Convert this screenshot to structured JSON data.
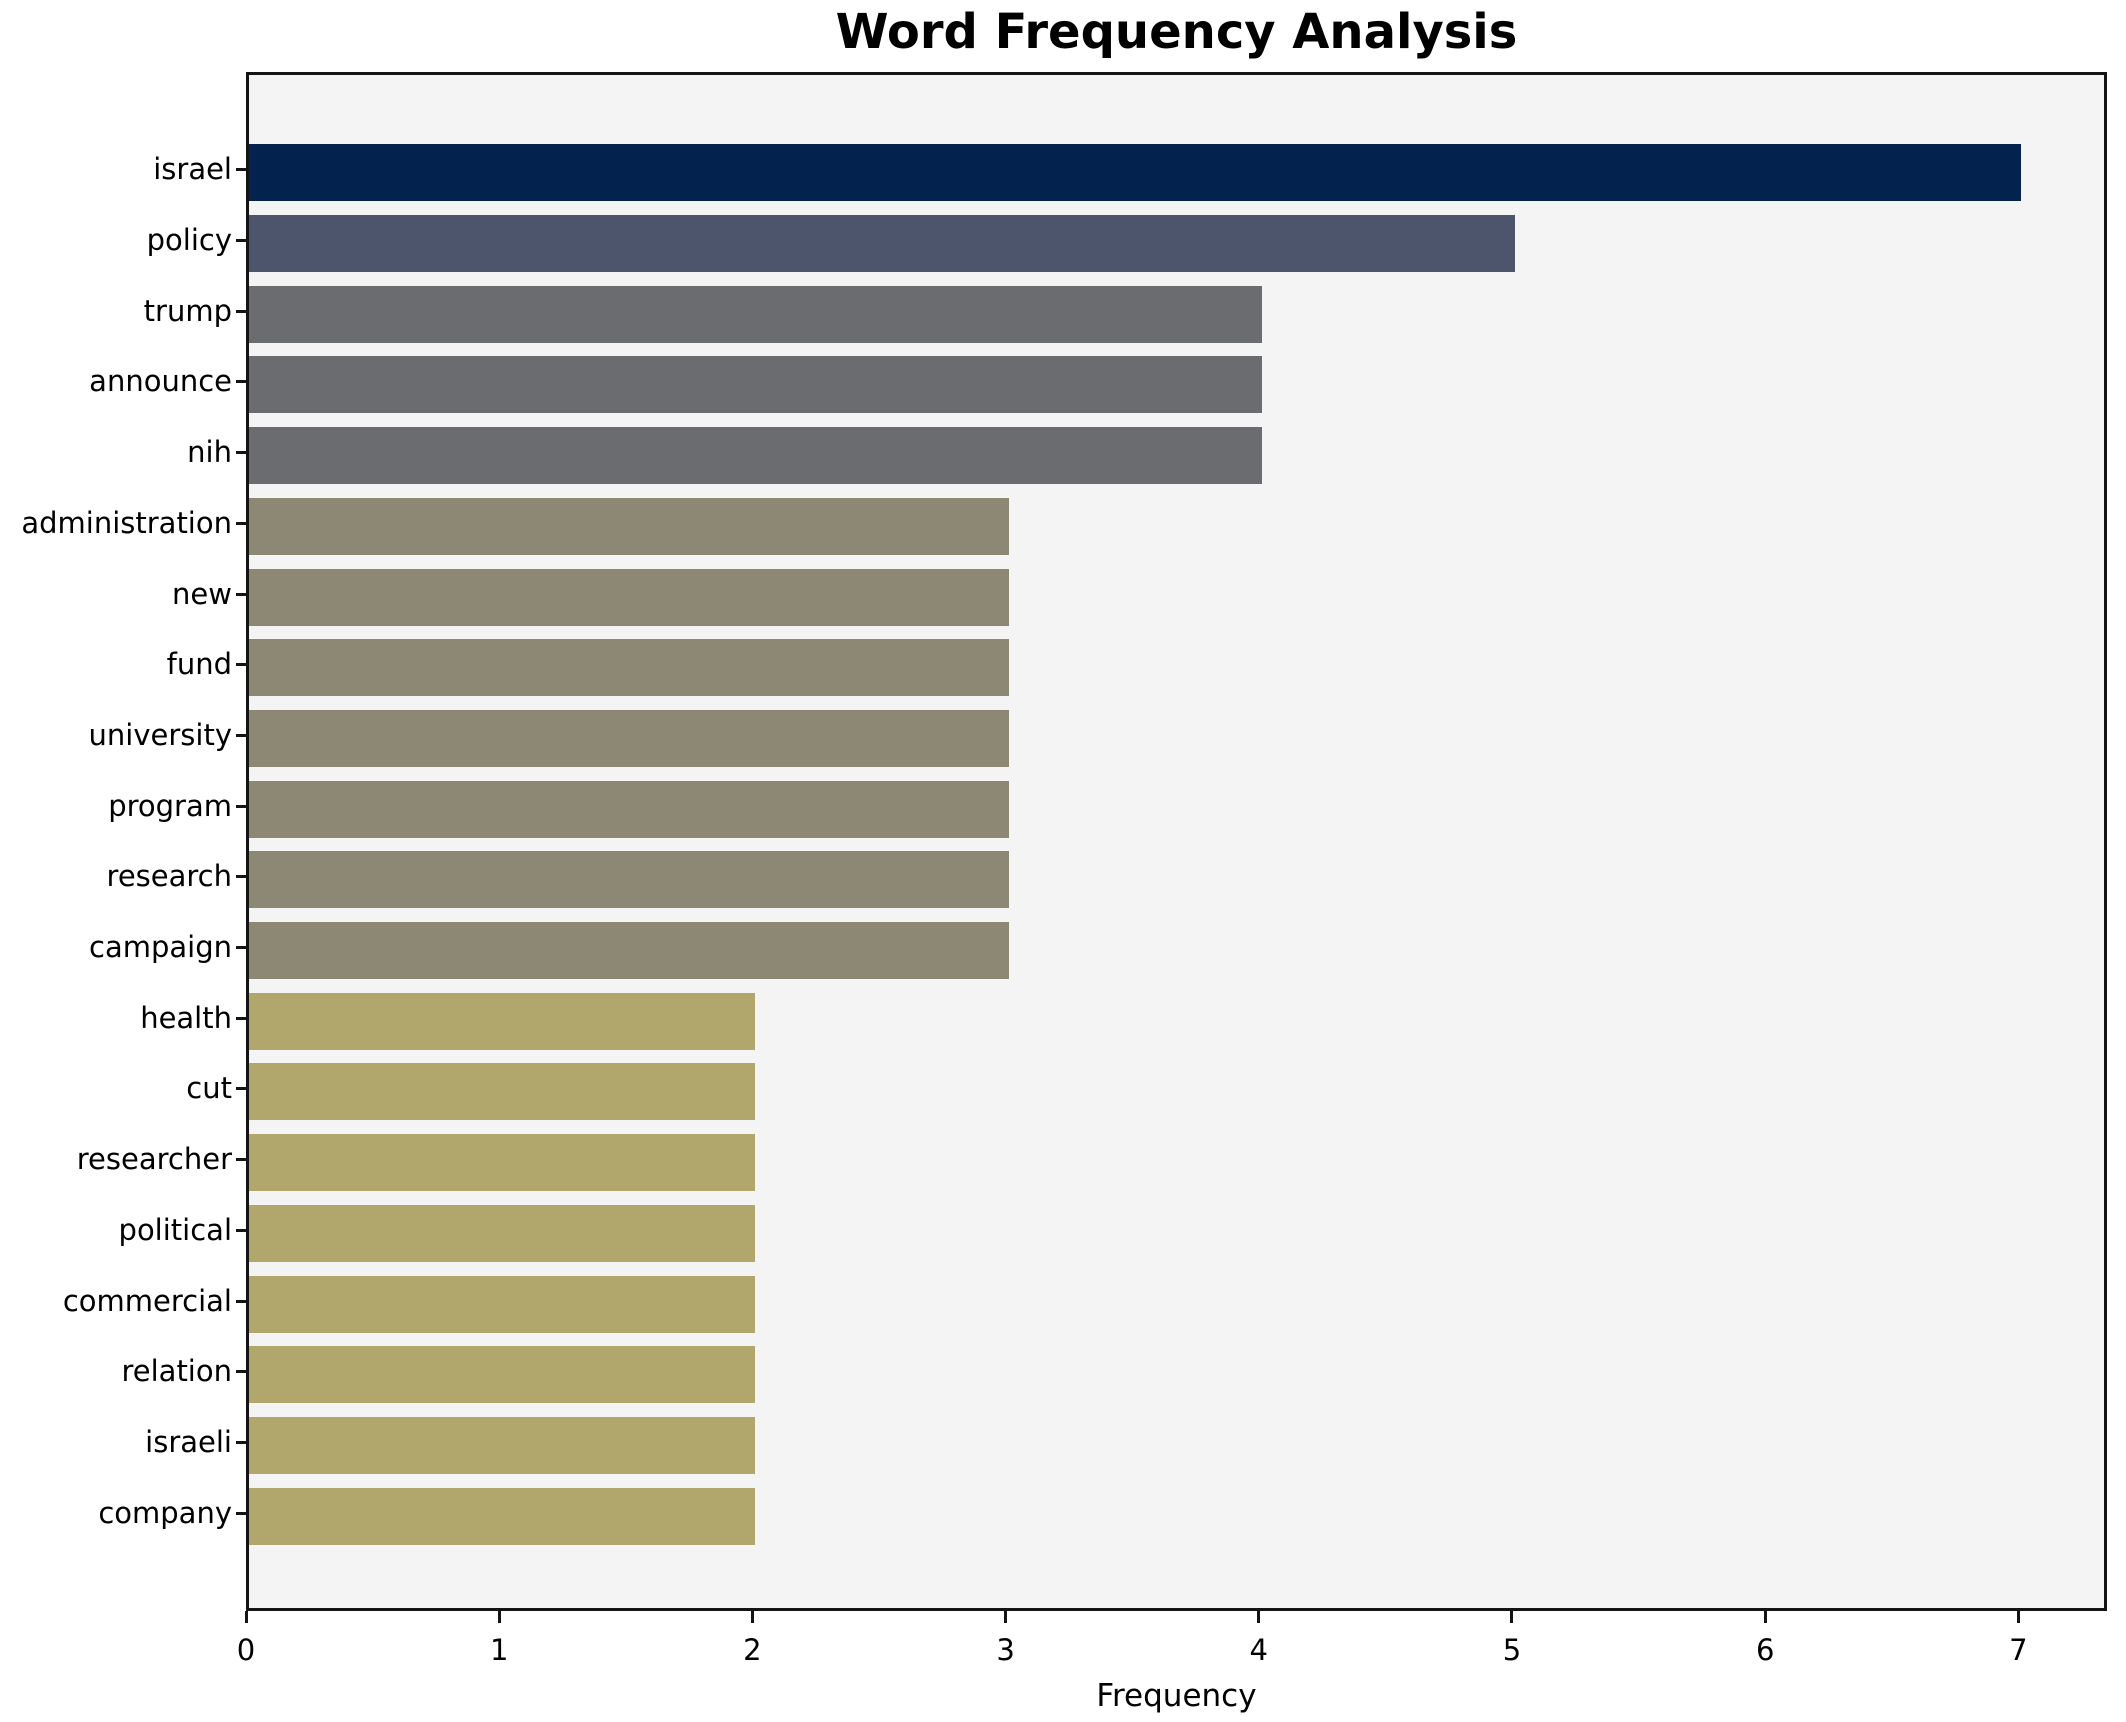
{
  "chart_data": {
    "type": "bar",
    "orientation": "horizontal",
    "title": "Word Frequency Analysis",
    "xlabel": "Frequency",
    "ylabel": "",
    "categories": [
      "israel",
      "policy",
      "trump",
      "announce",
      "nih",
      "administration",
      "new",
      "fund",
      "university",
      "program",
      "research",
      "campaign",
      "health",
      "cut",
      "researcher",
      "political",
      "commercial",
      "relation",
      "israeli",
      "company"
    ],
    "values": [
      7,
      5,
      4,
      4,
      4,
      3,
      3,
      3,
      3,
      3,
      3,
      3,
      2,
      2,
      2,
      2,
      2,
      2,
      2,
      2
    ],
    "xlim": [
      0,
      7.35
    ],
    "xticks": [
      "0",
      "1",
      "2",
      "3",
      "4",
      "5",
      "6",
      "7"
    ],
    "grid": false,
    "legend": false,
    "bar_colors_by_value": {
      "7": "#03234e",
      "5": "#4c556b",
      "4": "#6a6c70",
      "3": "#8d8874",
      "2": "#b1a66c"
    },
    "plot_background": "#f5f4f5",
    "figure_background": "#ffffff",
    "spine_color": "#141414"
  }
}
